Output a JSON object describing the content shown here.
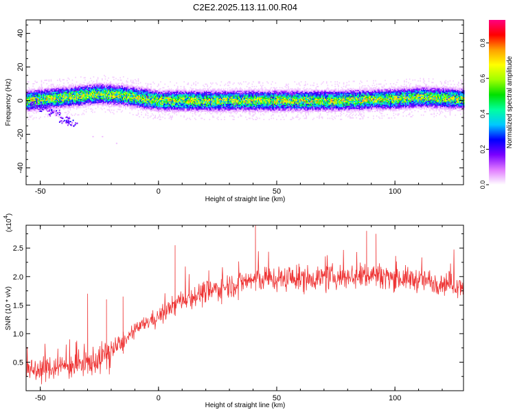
{
  "title": "C2E2.2025.113.11.00.R04",
  "chart_data": [
    {
      "type": "heatmap",
      "xlabel": "Height of straight line (km)",
      "ylabel": "Frequency (Hz)",
      "xlim": [
        -56,
        129
      ],
      "ylim": [
        -50,
        48
      ],
      "xticks": [
        -50,
        0,
        50,
        100
      ],
      "yticks": [
        -40,
        -20,
        0,
        20,
        40
      ],
      "colorbar": {
        "label": "Normalized spectral amplitude",
        "range": [
          0,
          0.93
        ],
        "ticks": [
          "0.0",
          "0.2",
          "0.4",
          "0.6",
          "0.8"
        ],
        "colors": [
          "#ffffff",
          "#e07bff",
          "#7a00ff",
          "#0000ff",
          "#00c8ff",
          "#00ffa0",
          "#00e000",
          "#a0ff00",
          "#ffff00",
          "#ffa000",
          "#ff0000",
          "#ff007f"
        ]
      },
      "ridge_center_hz": [
        {
          "x": -55,
          "y": 0
        },
        {
          "x": -40,
          "y": 2
        },
        {
          "x": -25,
          "y": 4
        },
        {
          "x": -15,
          "y": 3
        },
        {
          "x": -5,
          "y": 1
        },
        {
          "x": 0,
          "y": 0
        },
        {
          "x": 25,
          "y": 0
        },
        {
          "x": 50,
          "y": 0
        },
        {
          "x": 75,
          "y": 0
        },
        {
          "x": 100,
          "y": 1
        },
        {
          "x": 110,
          "y": 2
        },
        {
          "x": 129,
          "y": 1
        }
      ],
      "ridge_halfwidth_hz": 4,
      "low_branch": [
        {
          "x": -52,
          "y": -2
        },
        {
          "x": -48,
          "y": -4
        },
        {
          "x": -44,
          "y": -7
        },
        {
          "x": -40,
          "y": -11
        },
        {
          "x": -37,
          "y": -13
        }
      ],
      "outliers": [
        {
          "x": -28,
          "y": -21
        },
        {
          "x": -24,
          "y": -21
        },
        {
          "x": -18,
          "y": -25
        }
      ]
    },
    {
      "type": "line",
      "xlabel": "Height of straight line (km)",
      "ylabel": "SNR (10 * v/v)",
      "y_multiplier": "(x10",
      "y_multiplier_exp": "4",
      "y_multiplier_close": ")",
      "xlim": [
        -56,
        129
      ],
      "ylim": [
        0,
        2.9
      ],
      "xticks": [
        -50,
        0,
        50,
        100
      ],
      "yticks": [
        "0.5",
        "1.0",
        "1.5",
        "2.0",
        "2.5"
      ],
      "line_color": "#ee3333",
      "trend": [
        {
          "x": -56,
          "y": 0.35
        },
        {
          "x": -45,
          "y": 0.4
        },
        {
          "x": -35,
          "y": 0.45
        },
        {
          "x": -25,
          "y": 0.55
        },
        {
          "x": -20,
          "y": 0.7
        },
        {
          "x": -15,
          "y": 0.85
        },
        {
          "x": -10,
          "y": 1.05
        },
        {
          "x": -5,
          "y": 1.2
        },
        {
          "x": 0,
          "y": 1.3
        },
        {
          "x": 5,
          "y": 1.45
        },
        {
          "x": 10,
          "y": 1.6
        },
        {
          "x": 20,
          "y": 1.72
        },
        {
          "x": 30,
          "y": 1.85
        },
        {
          "x": 40,
          "y": 1.95
        },
        {
          "x": 60,
          "y": 1.97
        },
        {
          "x": 80,
          "y": 2.0
        },
        {
          "x": 90,
          "y": 2.05
        },
        {
          "x": 100,
          "y": 1.98
        },
        {
          "x": 115,
          "y": 1.92
        },
        {
          "x": 129,
          "y": 1.85
        }
      ],
      "noise_amplitude": [
        {
          "x": -56,
          "y": 0.3
        },
        {
          "x": -20,
          "y": 0.35
        },
        {
          "x": -15,
          "y": 0.15
        },
        {
          "x": 0,
          "y": 0.2
        },
        {
          "x": 20,
          "y": 0.3
        },
        {
          "x": 129,
          "y": 0.28
        }
      ],
      "spikes": [
        {
          "x": -30,
          "y": 1.7
        },
        {
          "x": -22,
          "y": 1.6
        },
        {
          "x": -15,
          "y": 1.65
        },
        {
          "x": 7,
          "y": 2.55
        },
        {
          "x": 41,
          "y": 2.92
        },
        {
          "x": 88,
          "y": 2.8
        },
        {
          "x": 92,
          "y": 2.75
        }
      ]
    }
  ]
}
